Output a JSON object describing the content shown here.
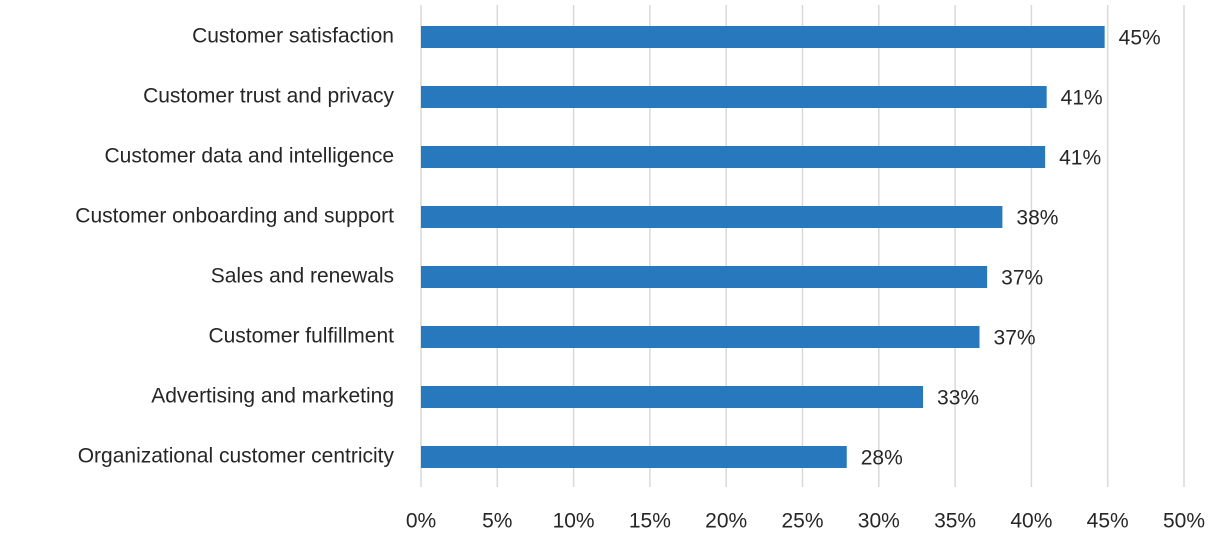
{
  "chart_data": {
    "type": "bar",
    "orientation": "horizontal",
    "categories": [
      "Customer satisfaction",
      "Customer trust and privacy",
      "Customer data and intelligence",
      "Customer onboarding and support",
      "Sales and renewals",
      "Customer fulfillment",
      "Advertising and marketing",
      "Organizational customer centricity"
    ],
    "values": [
      44.8,
      41,
      40.9,
      38.1,
      37.1,
      36.6,
      32.9,
      27.9
    ],
    "value_labels": [
      "45%",
      "41%",
      "41%",
      "38%",
      "37%",
      "37%",
      "33%",
      "28%"
    ],
    "color": "#2878be",
    "xlim": [
      0,
      50
    ],
    "xticks": [
      {
        "value": 0,
        "label": "0%"
      },
      {
        "value": 5,
        "label": "5%"
      },
      {
        "value": 10,
        "label": "10%"
      },
      {
        "value": 15,
        "label": "15%"
      },
      {
        "value": 20,
        "label": "20%"
      },
      {
        "value": 25,
        "label": "25%"
      },
      {
        "value": 30,
        "label": "30%"
      },
      {
        "value": 35,
        "label": "35%"
      },
      {
        "value": 40,
        "label": "40%"
      },
      {
        "value": 45,
        "label": "45%"
      },
      {
        "value": 50,
        "label": "50%"
      }
    ],
    "grid": true
  }
}
